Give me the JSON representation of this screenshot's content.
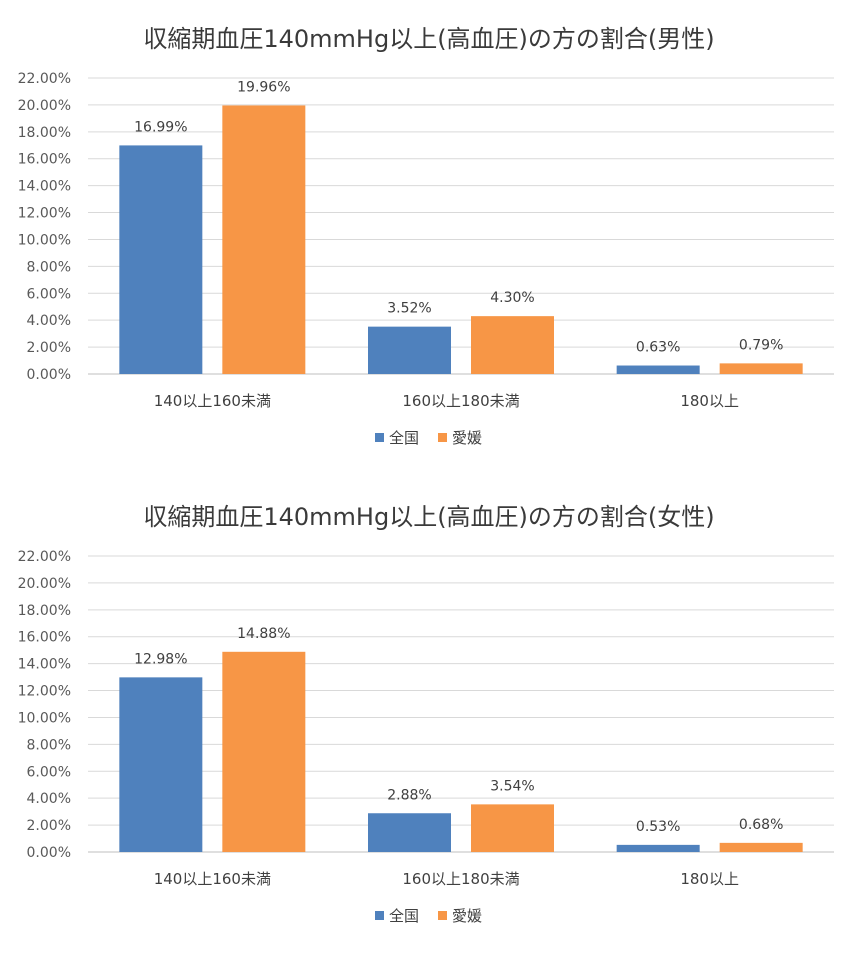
{
  "chart_data": [
    {
      "type": "bar",
      "title": "収縮期血圧140mmHg以上(高血圧)の方の割合(男性)",
      "categories": [
        "140以上160未満",
        "160以上180未満",
        "180以上"
      ],
      "series": [
        {
          "name": "全国",
          "color": "#4f81bd",
          "values": [
            16.99,
            3.52,
            0.63
          ],
          "labels": [
            "16.99%",
            "3.52%",
            "0.63%"
          ]
        },
        {
          "name": "愛媛",
          "color": "#f79646",
          "values": [
            19.96,
            4.3,
            0.79
          ],
          "labels": [
            "19.96%",
            "4.30%",
            "0.79%"
          ]
        }
      ],
      "ylim": [
        0,
        22
      ],
      "yticks": [
        "0.00%",
        "2.00%",
        "4.00%",
        "6.00%",
        "8.00%",
        "10.00%",
        "12.00%",
        "14.00%",
        "16.00%",
        "18.00%",
        "20.00%",
        "22.00%"
      ],
      "legend": "bottom",
      "grid": true
    },
    {
      "type": "bar",
      "title": "収縮期血圧140mmHg以上(高血圧)の方の割合(女性)",
      "categories": [
        "140以上160未満",
        "160以上180未満",
        "180以上"
      ],
      "series": [
        {
          "name": "全国",
          "color": "#4f81bd",
          "values": [
            12.98,
            2.88,
            0.53
          ],
          "labels": [
            "12.98%",
            "2.88%",
            "0.53%"
          ]
        },
        {
          "name": "愛媛",
          "color": "#f79646",
          "values": [
            14.88,
            3.54,
            0.68
          ],
          "labels": [
            "14.88%",
            "3.54%",
            "0.68%"
          ]
        }
      ],
      "ylim": [
        0,
        22
      ],
      "yticks": [
        "0.00%",
        "2.00%",
        "4.00%",
        "6.00%",
        "8.00%",
        "10.00%",
        "12.00%",
        "14.00%",
        "16.00%",
        "18.00%",
        "20.00%",
        "22.00%"
      ],
      "legend": "bottom",
      "grid": true
    }
  ]
}
